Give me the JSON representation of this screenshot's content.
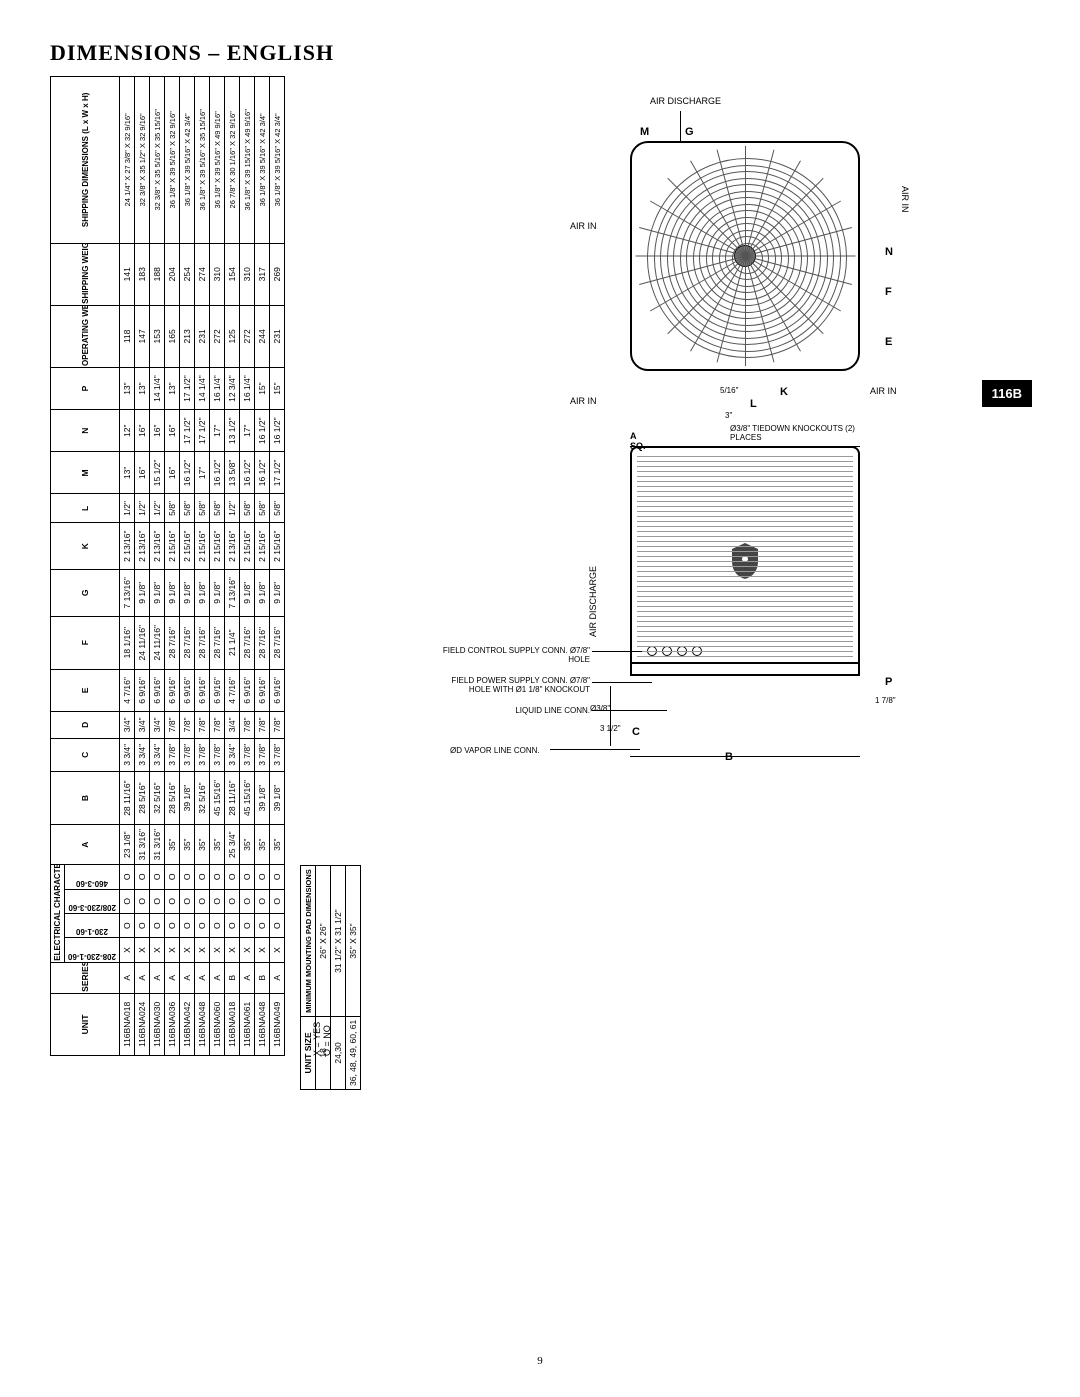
{
  "page": {
    "title": "DIMENSIONS – ENGLISH",
    "number": "9",
    "side_tab": "116B"
  },
  "dims_table": {
    "header_groups": {
      "unit": "UNIT",
      "series": "SERIES",
      "electrical": "ELECTRICAL CHARACTERISTICS",
      "op_weight": "OPERATING WEIGHT (lbs)",
      "ship_weight": "SHIPPING WEIGHT (lbs)",
      "ship_dims": "SHIPPING DIMENSIONS (L x W x H)"
    },
    "elec_cols": [
      "208-230-1-60",
      "230-1-60",
      "208/230-3-60",
      "460-3-60"
    ],
    "dim_cols": [
      "A",
      "B",
      "C",
      "D",
      "E",
      "F",
      "G",
      "K",
      "L",
      "M",
      "N",
      "P"
    ],
    "rows": [
      {
        "unit": "116BNA018",
        "series": "A",
        "elec": [
          "X",
          "O",
          "O",
          "O"
        ],
        "dims": [
          "23 1/8\"",
          "28 11/16\"",
          "3 3/4\"",
          "3/4\"",
          "4 7/16\"",
          "18 1/16\"",
          "7 13/16\"",
          "2 13/16\"",
          "1/2\"",
          "13\"",
          "12\"",
          "13\""
        ],
        "ow": "118",
        "sw": "141",
        "ship": "24 1/4\" X 27 3/8\" X 32 9/16\""
      },
      {
        "unit": "116BNA024",
        "series": "A",
        "elec": [
          "X",
          "O",
          "O",
          "O"
        ],
        "dims": [
          "31 3/16\"",
          "28 5/16\"",
          "3 3/4\"",
          "3/4\"",
          "6 9/16\"",
          "24 11/16\"",
          "9 1/8\"",
          "2 13/16\"",
          "1/2\"",
          "16\"",
          "16\"",
          "13\""
        ],
        "ow": "147",
        "sw": "183",
        "ship": "32 3/8\" X 35 1/2\" X 32 9/16\""
      },
      {
        "unit": "116BNA030",
        "series": "A",
        "elec": [
          "X",
          "O",
          "O",
          "O"
        ],
        "dims": [
          "31 3/16\"",
          "32 5/16\"",
          "3 3/4\"",
          "3/4\"",
          "6 9/16\"",
          "24 11/16\"",
          "9 1/8\"",
          "2 13/16\"",
          "1/2\"",
          "15 1/2\"",
          "16\"",
          "14 1/4\""
        ],
        "ow": "153",
        "sw": "188",
        "ship": "32 3/8\" X 35 5/16\" X 35 15/16\""
      },
      {
        "unit": "116BNA036",
        "series": "A",
        "elec": [
          "X",
          "O",
          "O",
          "O"
        ],
        "dims": [
          "35\"",
          "28 5/16\"",
          "3 7/8\"",
          "7/8\"",
          "6 9/16\"",
          "28 7/16\"",
          "9 1/8\"",
          "2 15/16\"",
          "5/8\"",
          "16\"",
          "16\"",
          "13\""
        ],
        "ow": "165",
        "sw": "204",
        "ship": "36 1/8\" X 39 5/16\" X 32 9/16\""
      },
      {
        "unit": "116BNA042",
        "series": "A",
        "elec": [
          "X",
          "O",
          "O",
          "O"
        ],
        "dims": [
          "35\"",
          "39 1/8\"",
          "3 7/8\"",
          "7/8\"",
          "6 9/16\"",
          "28 7/16\"",
          "9 1/8\"",
          "2 15/16\"",
          "5/8\"",
          "16 1/2\"",
          "17 1/2\"",
          "17 1/2\""
        ],
        "ow": "213",
        "sw": "254",
        "ship": "36 1/8\" X 39 5/16\" X 42 3/4\""
      },
      {
        "unit": "116BNA048",
        "series": "A",
        "elec": [
          "X",
          "O",
          "O",
          "O"
        ],
        "dims": [
          "35\"",
          "32 5/16\"",
          "3 7/8\"",
          "7/8\"",
          "6 9/16\"",
          "28 7/16\"",
          "9 1/8\"",
          "2 15/16\"",
          "5/8\"",
          "17\"",
          "17 1/2\"",
          "14 1/4\""
        ],
        "ow": "231",
        "sw": "274",
        "ship": "36 1/8\" X 39 5/16\" X 35 15/16\""
      },
      {
        "unit": "116BNA060",
        "series": "A",
        "elec": [
          "X",
          "O",
          "O",
          "O"
        ],
        "dims": [
          "35\"",
          "45 15/16\"",
          "3 7/8\"",
          "7/8\"",
          "6 9/16\"",
          "28 7/16\"",
          "9 1/8\"",
          "2 15/16\"",
          "5/8\"",
          "16 1/2\"",
          "17\"",
          "16 1/4\""
        ],
        "ow": "272",
        "sw": "310",
        "ship": "36 1/8\" X 39 5/16\" X 49 9/16\""
      },
      {
        "unit": "116BNA018",
        "series": "B",
        "elec": [
          "X",
          "O",
          "O",
          "O"
        ],
        "dims": [
          "25 3/4\"",
          "28 11/16\"",
          "3 3/4\"",
          "3/4\"",
          "4 7/16\"",
          "21 1/4\"",
          "7 13/16\"",
          "2 13/16\"",
          "1/2\"",
          "13 5/8\"",
          "13 1/2\"",
          "12 3/4\""
        ],
        "ow": "125",
        "sw": "154",
        "ship": "26 7/8\" X 30 1/16\" X 32 9/16\""
      },
      {
        "unit": "116BNA061",
        "series": "A",
        "elec": [
          "X",
          "O",
          "O",
          "O"
        ],
        "dims": [
          "35\"",
          "45 15/16\"",
          "3 7/8\"",
          "7/8\"",
          "6 9/16\"",
          "28 7/16\"",
          "9 1/8\"",
          "2 15/16\"",
          "5/8\"",
          "16 1/2\"",
          "17\"",
          "16 1/4\""
        ],
        "ow": "272",
        "sw": "310",
        "ship": "36 1/8\" X 39 15/16\" X 49 9/16\""
      },
      {
        "unit": "116BNA048",
        "series": "B",
        "elec": [
          "X",
          "O",
          "O",
          "O"
        ],
        "dims": [
          "35\"",
          "39 1/8\"",
          "3 7/8\"",
          "7/8\"",
          "6 9/16\"",
          "28 7/16\"",
          "9 1/8\"",
          "2 15/16\"",
          "5/8\"",
          "16 1/2\"",
          "16 1/2\"",
          "15\""
        ],
        "ow": "244",
        "sw": "317",
        "ship": "36 1/8\" X 39 5/16\" X 42 3/4\""
      },
      {
        "unit": "116BNA049",
        "series": "A",
        "elec": [
          "X",
          "O",
          "O",
          "O"
        ],
        "dims": [
          "35\"",
          "39 1/8\"",
          "3 7/8\"",
          "7/8\"",
          "6 9/16\"",
          "28 7/16\"",
          "9 1/8\"",
          "2 15/16\"",
          "5/8\"",
          "17 1/2\"",
          "16 1/2\"",
          "15\""
        ],
        "ow": "231",
        "sw": "269",
        "ship": "36 1/8\" X 39 5/16\" X 42 3/4\""
      }
    ],
    "legend": "X = YES\nO = NO"
  },
  "pad_table": {
    "header1": "UNIT SIZE",
    "header2": "MINIMUM MOUNTING PAD DIMENSIONS",
    "rows": [
      {
        "size": "18",
        "dim": "26\" X 26\""
      },
      {
        "size": "24,30",
        "dim": "31 1/2\" X 31 1/2\""
      },
      {
        "size": "36, 48, 49, 60, 61",
        "dim": "35\" X 35\""
      }
    ]
  },
  "diagram": {
    "top_view": {
      "label_air_discharge": "AIR DISCHARGE",
      "label_air_in_left": "AIR IN",
      "label_air_in_right": "AIR IN",
      "label_air_in_bottom": "AIR IN",
      "dim_M": "M",
      "dim_G": "G",
      "dim_N": "N",
      "dim_F": "F",
      "dim_E": "E",
      "dim_K": "K",
      "dim_L": "L",
      "note_5_16": "5/16\"",
      "note_3": "3\"",
      "tiedown": "Ø3/8\" TIEDOWN KNOCKOUTS (2) PLACES"
    },
    "side_view": {
      "label_A_sq": "A\nSQ.",
      "label_air_discharge": "AIR DISCHARGE",
      "dim_B": "B",
      "dim_C": "C",
      "dim_P": "P",
      "note_3_1_2": "3 1/2\"",
      "note_1_7_8": "1 7/8\"",
      "field_control": "FIELD CONTROL SUPPLY CONN. Ø7/8\" HOLE",
      "field_power": "FIELD POWER SUPPLY CONN. Ø7/8\" HOLE WITH Ø1 1/8\" KNOCKOUT",
      "liquid_line": "LIQUID LINE CONN.",
      "vapor_line": "ØD VAPOR LINE CONN.",
      "conn_3_8": "Ø3/8\""
    }
  },
  "style": {
    "rule_color": "#000000",
    "fin_color": "#999999",
    "grille_color": "#555555",
    "background": "#ffffff",
    "tab_bg": "#000000",
    "tab_fg": "#ffffff"
  }
}
